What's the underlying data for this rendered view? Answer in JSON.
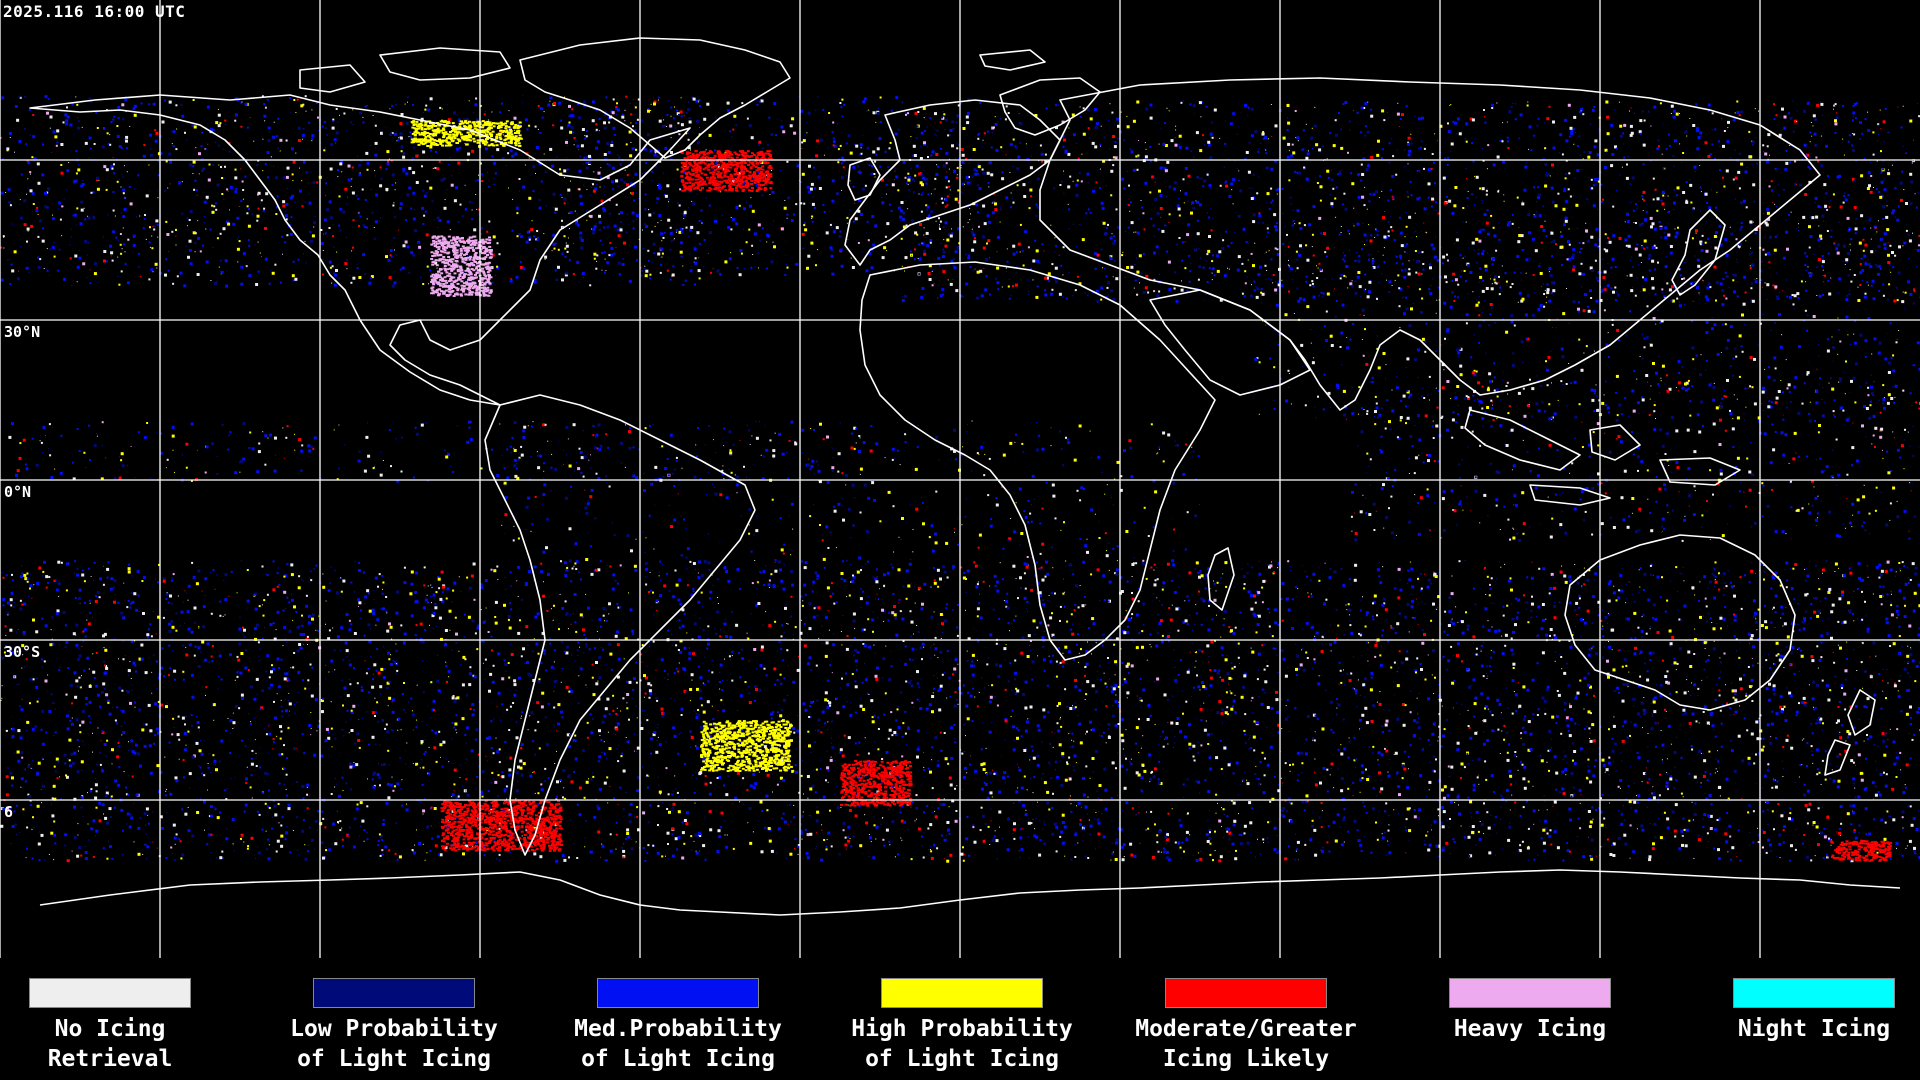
{
  "header": {
    "timestamp": "2025.116 16:00 UTC"
  },
  "latitude_labels": [
    "30°N",
    "0°N",
    "30°S",
    "6"
  ],
  "legend": [
    {
      "line1": "No Icing",
      "line2": "Retrieval",
      "color": "#eeeeee"
    },
    {
      "line1": "Low Probability",
      "line2": "of Light Icing",
      "color": "#000a78"
    },
    {
      "line1": "Med.Probability",
      "line2": "of Light Icing",
      "color": "#0010f2"
    },
    {
      "line1": "High Probability",
      "line2": "of Light Icing",
      "color": "#ffff00"
    },
    {
      "line1": "Moderate/Greater",
      "line2": "Icing Likely",
      "color": "#ff0000"
    },
    {
      "line1": "Heavy Icing",
      "line2": "",
      "color": "#eeaaee"
    },
    {
      "line1": "Night Icing",
      "line2": "",
      "color": "#00ffff"
    }
  ]
}
